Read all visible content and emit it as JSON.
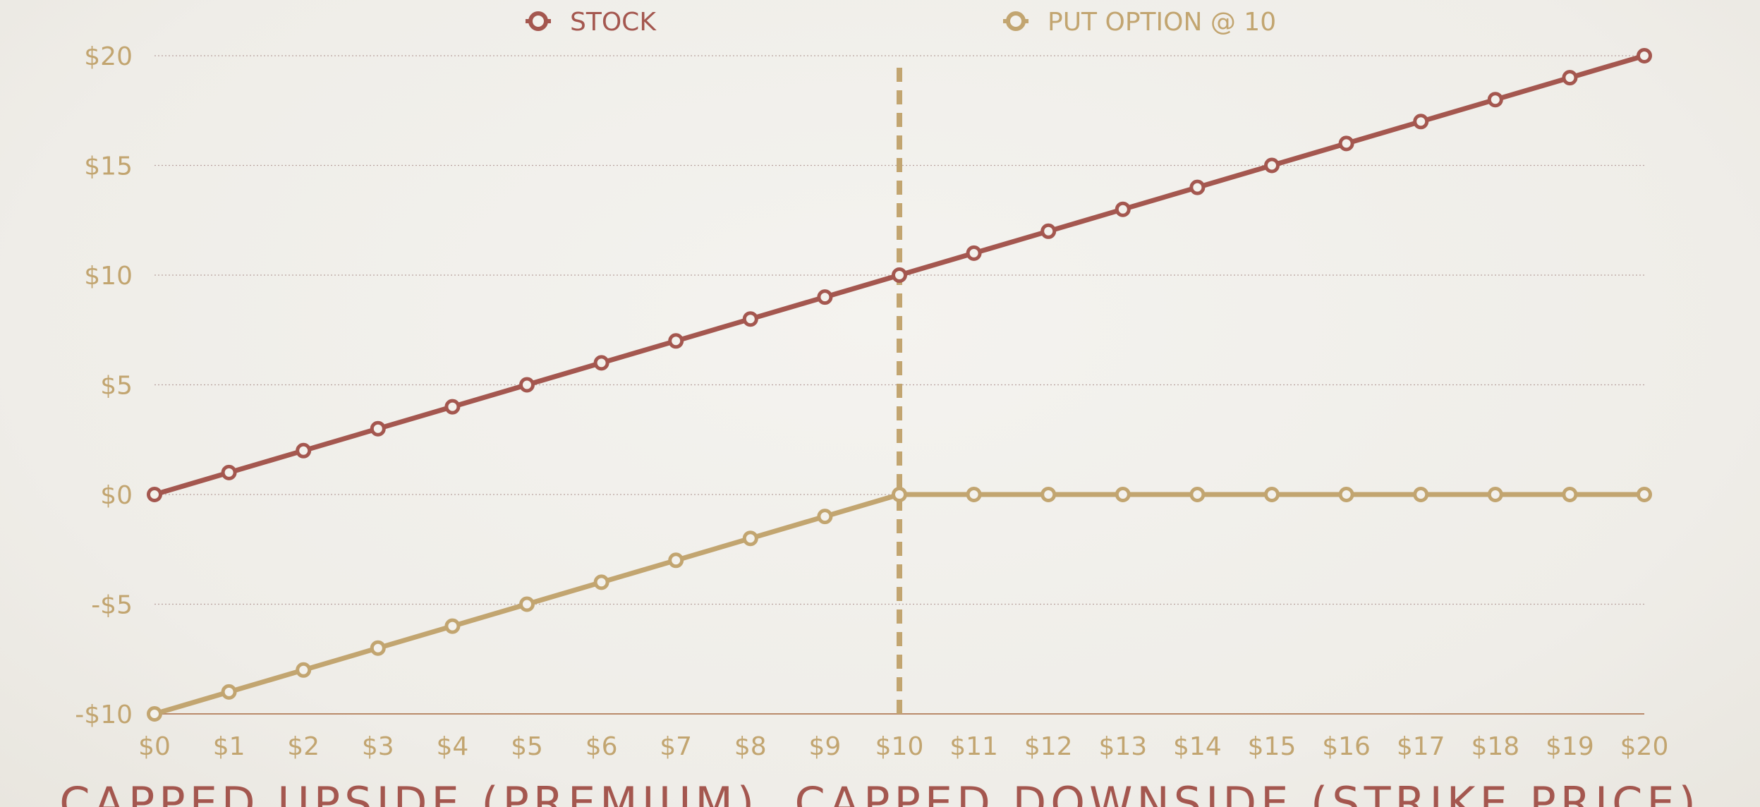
{
  "chart_data": {
    "type": "line",
    "x": [
      0,
      1,
      2,
      3,
      4,
      5,
      6,
      7,
      8,
      9,
      10,
      11,
      12,
      13,
      14,
      15,
      16,
      17,
      18,
      19,
      20
    ],
    "x_tick_labels": [
      "$0",
      "$1",
      "$2",
      "$3",
      "$4",
      "$5",
      "$6",
      "$7",
      "$8",
      "$9",
      "$10",
      "$11",
      "$12",
      "$13",
      "$14",
      "$15",
      "$16",
      "$17",
      "$18",
      "$19",
      "$20"
    ],
    "y_tick_values": [
      -10,
      -5,
      0,
      5,
      10,
      15,
      20
    ],
    "y_tick_labels": [
      "-$10",
      "-$5",
      "$0",
      "$5",
      "$10",
      "$15",
      "$20"
    ],
    "ylim": [
      -10,
      20
    ],
    "xlim": [
      0,
      20
    ],
    "series": [
      {
        "name": "STOCK",
        "color": "#a4574f",
        "values": [
          0,
          1,
          2,
          3,
          4,
          5,
          6,
          7,
          8,
          9,
          10,
          11,
          12,
          13,
          14,
          15,
          16,
          17,
          18,
          19,
          20
        ]
      },
      {
        "name": "PUT OPTION @ 10",
        "color": "#c2a570",
        "values": [
          -10,
          -9,
          -8,
          -7,
          -6,
          -5,
          -4,
          -3,
          -2,
          -1,
          0,
          0,
          0,
          0,
          0,
          0,
          0,
          0,
          0,
          0,
          0
        ]
      }
    ],
    "reference_line": {
      "x": 10,
      "style": "dashed",
      "color": "#c2a570"
    },
    "grid": true,
    "legend_position": "top-center",
    "subtitle": "CAPPED UPSIDE (PREMIUM), CAPPED DOWNSIDE (STRIKE PRICE)",
    "subtitle_color": "#a4574f"
  }
}
